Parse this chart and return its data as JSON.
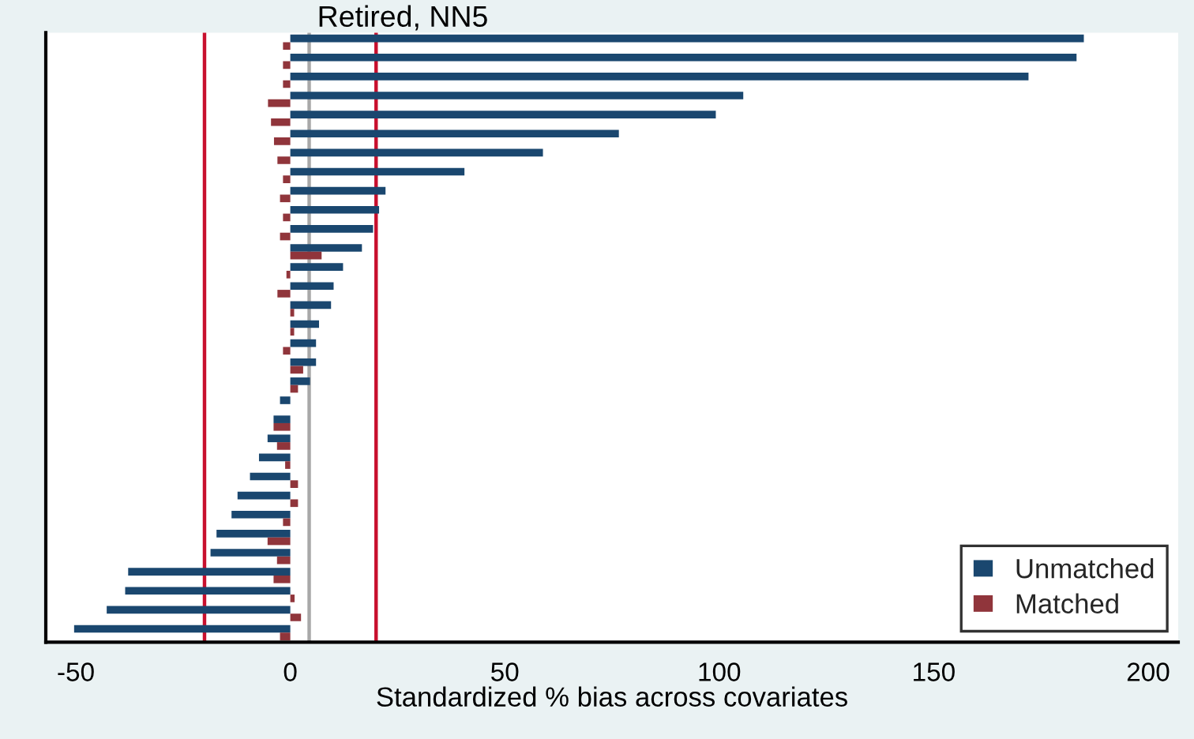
{
  "chart_data": {
    "type": "bar",
    "orientation": "horizontal",
    "title": "Retired, NN5",
    "xlabel": "Standardized % bias across covariates",
    "categories": [
      null,
      null,
      null,
      null,
      null,
      null,
      null,
      null,
      null,
      null,
      null,
      null,
      null,
      null,
      null,
      null,
      null,
      null,
      null,
      null,
      null,
      null,
      null,
      null,
      null,
      null,
      null,
      null,
      null,
      null,
      null,
      null
    ],
    "series": [
      {
        "name": "Unmatched",
        "color": "#1a476f",
        "values": [
          185,
          183.3,
          172.1,
          105.6,
          99.2,
          76.6,
          58.9,
          40.6,
          22.2,
          20.7,
          19.3,
          16.7,
          12.3,
          10.1,
          9.5,
          6.7,
          6.0,
          6.0,
          4.6,
          -2.4,
          -3.9,
          -5.3,
          -7.3,
          -9.4,
          -12.3,
          -13.7,
          -17.2,
          -18.6,
          -37.8,
          -38.5,
          -42.8,
          -50.4
        ]
      },
      {
        "name": "Matched",
        "color": "#90353b",
        "values": [
          -1.7,
          -1.7,
          -1.7,
          -5.2,
          -4.5,
          -3.8,
          -3.0,
          -1.7,
          -2.4,
          -1.7,
          -2.4,
          7.3,
          -0.9,
          -3.0,
          0.9,
          0.9,
          -1.7,
          3.0,
          1.8,
          0,
          -3.9,
          -3.1,
          -1.2,
          1.8,
          1.8,
          -1.7,
          -5.3,
          -3.1,
          -3.9,
          1.0,
          2.5,
          -2.4
        ]
      }
    ],
    "xlim": [
      -57,
      207
    ],
    "xticks": [
      -50,
      0,
      50,
      100,
      150,
      200
    ],
    "ref_lines": [
      {
        "axis": "x",
        "value": -20,
        "color": "#c8102e"
      },
      {
        "axis": "x",
        "value": 20,
        "color": "#c8102e"
      },
      {
        "axis": "x",
        "value": 4.4,
        "color": "#a8a8a8"
      }
    ],
    "grid": false,
    "legend": "bottom right"
  }
}
